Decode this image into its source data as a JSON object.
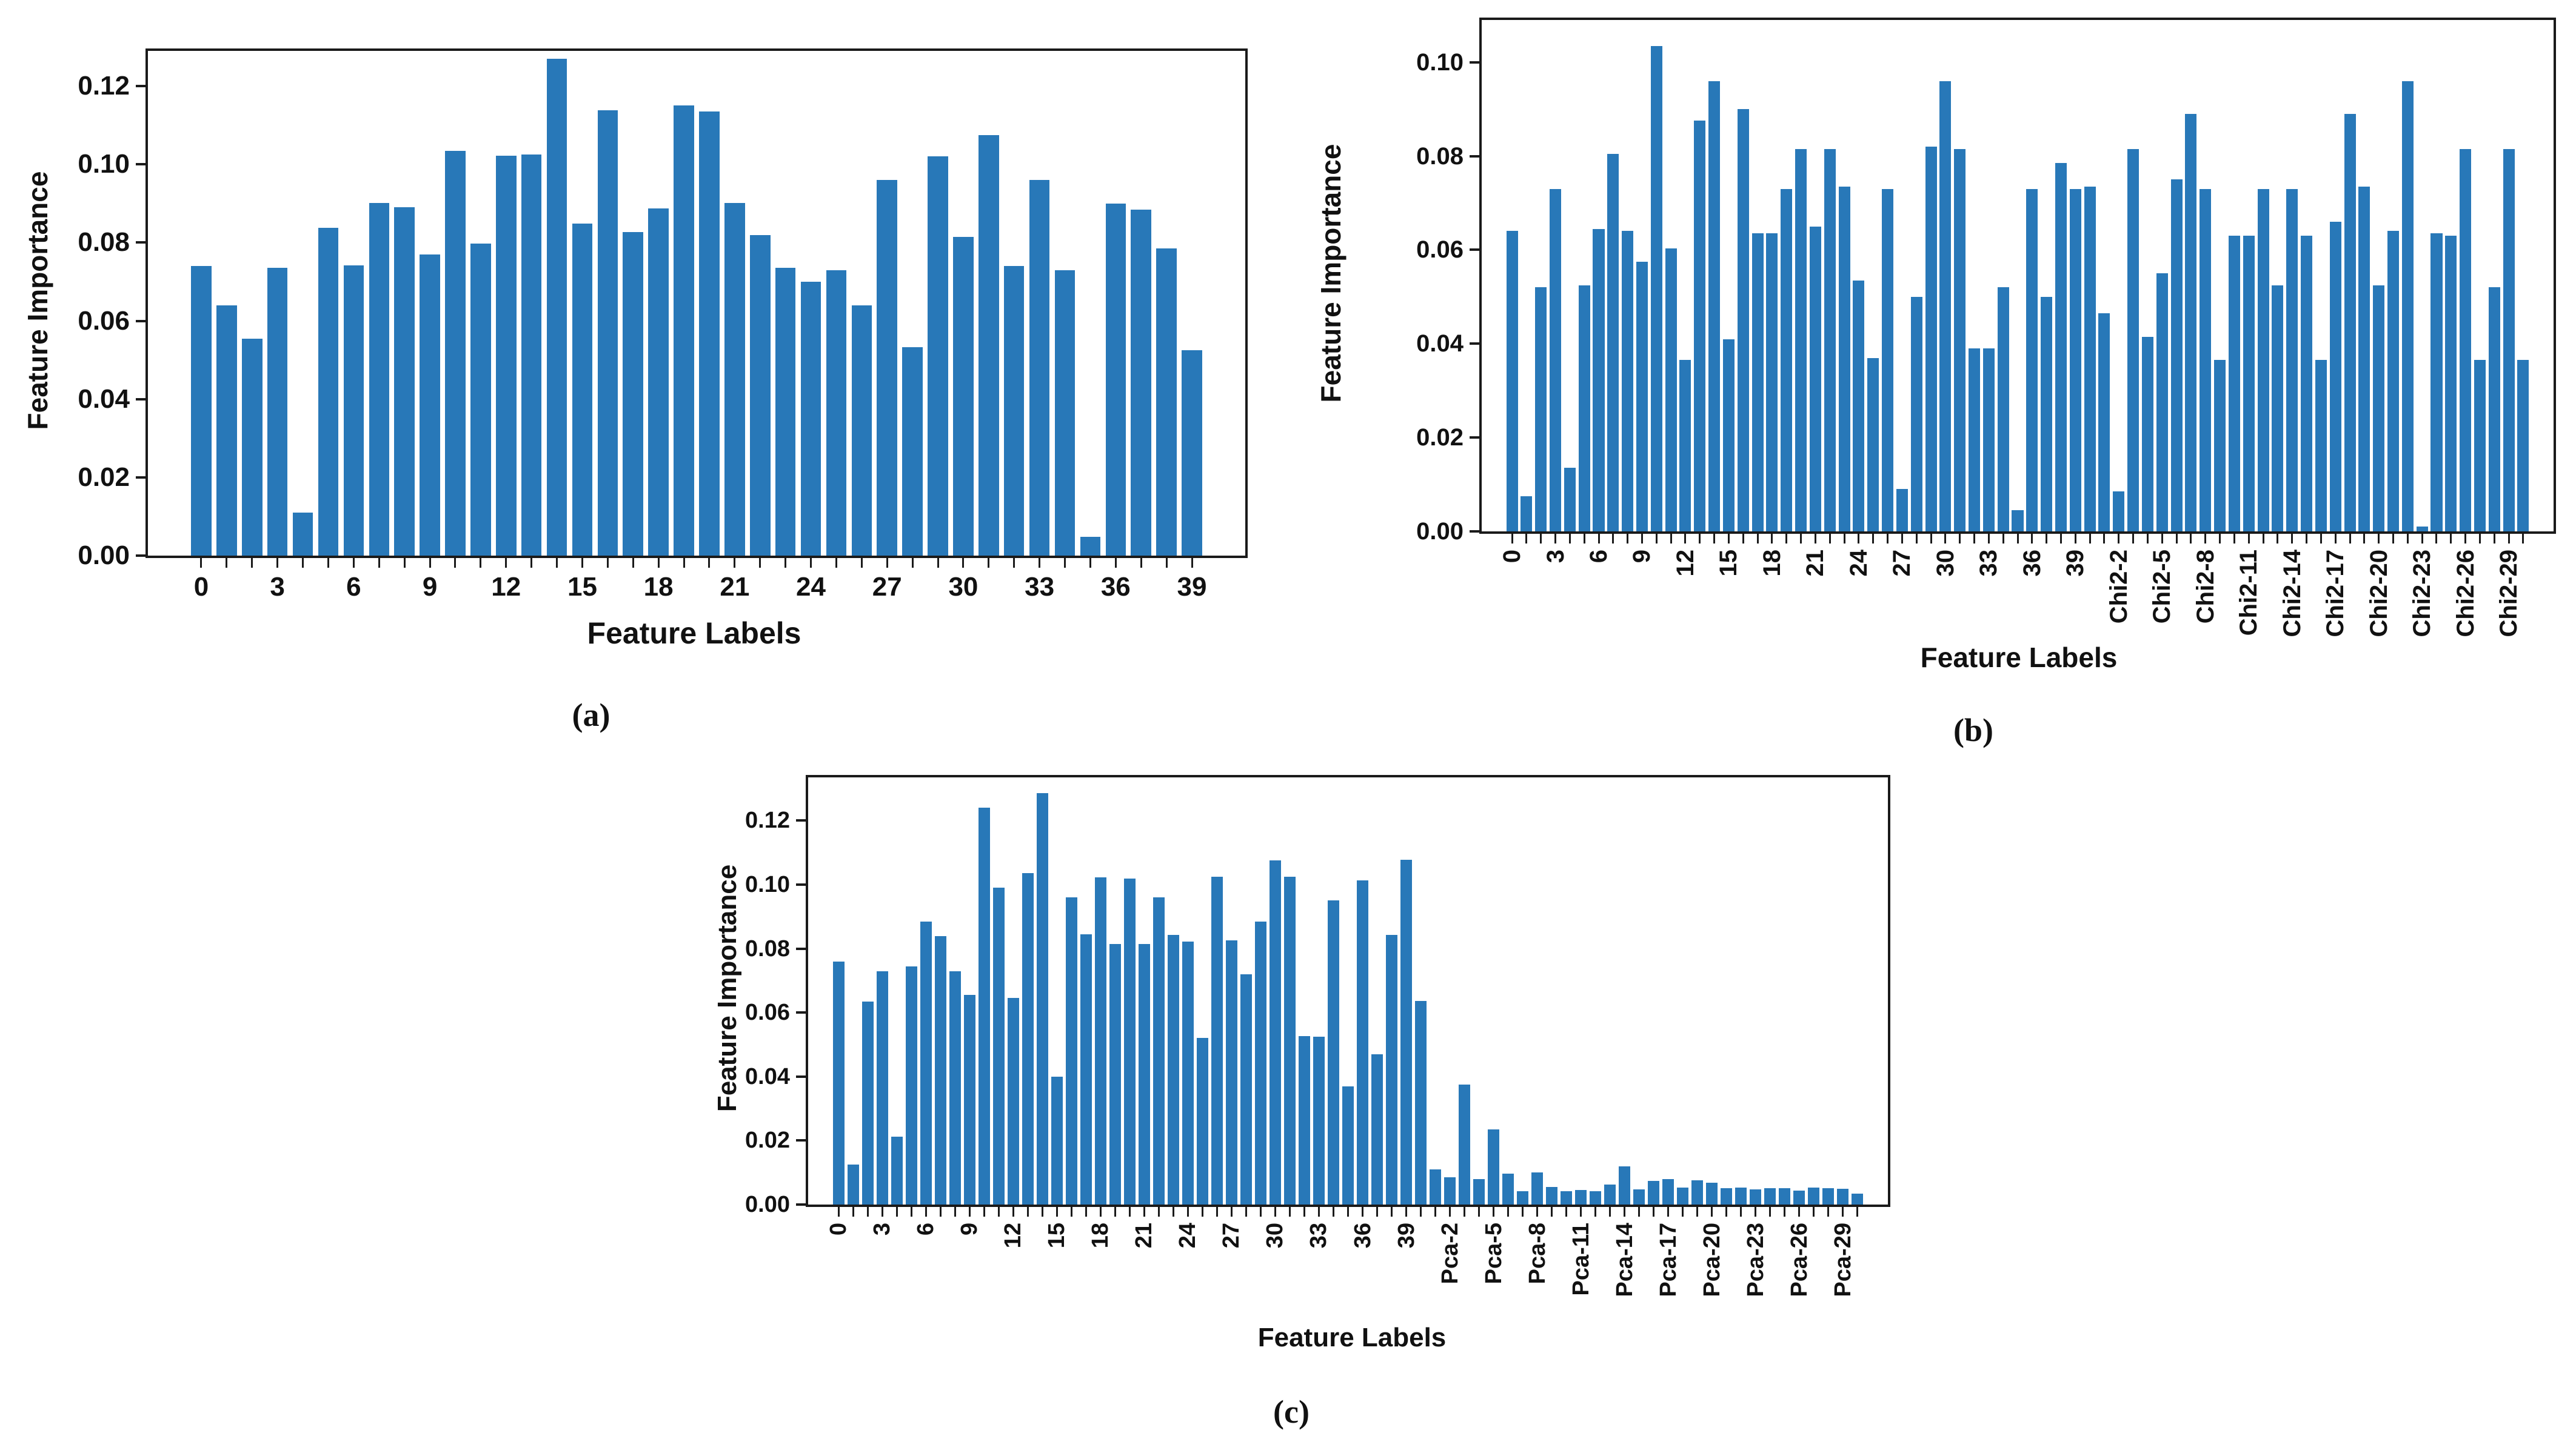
{
  "figure": {
    "background": "#ffffff",
    "bar_color": "#2878b8",
    "axis_color": "#1a1a1a",
    "captions": {
      "a": "(a)",
      "b": "(b)",
      "c": "(c)"
    }
  },
  "chart_data": [
    {
      "id": "a",
      "type": "bar",
      "title": "",
      "xlabel": "Feature Labels",
      "ylabel": "Feature Importance",
      "ylim": [
        0,
        0.129
      ],
      "yticks": [
        "0.00",
        "0.02",
        "0.04",
        "0.06",
        "0.08",
        "0.10",
        "0.12"
      ],
      "grid": false,
      "legend": null,
      "xtick_rotation": 0,
      "label_every": 3,
      "categories": [
        "0",
        "1",
        "2",
        "3",
        "4",
        "5",
        "6",
        "7",
        "8",
        "9",
        "10",
        "11",
        "12",
        "13",
        "14",
        "15",
        "16",
        "17",
        "18",
        "19",
        "20",
        "21",
        "22",
        "23",
        "24",
        "25",
        "26",
        "27",
        "28",
        "29",
        "30",
        "31",
        "32",
        "33",
        "34",
        "35",
        "36",
        "37",
        "38",
        "39"
      ],
      "values": [
        0.074,
        0.064,
        0.0555,
        0.0735,
        0.011,
        0.0838,
        0.0742,
        0.0902,
        0.089,
        0.077,
        0.1035,
        0.0797,
        0.1022,
        0.1025,
        0.127,
        0.0848,
        0.1138,
        0.0827,
        0.0888,
        0.115,
        0.1135,
        0.0902,
        0.082,
        0.0735,
        0.07,
        0.073,
        0.064,
        0.096,
        0.0532,
        0.102,
        0.0815,
        0.1075,
        0.074,
        0.096,
        0.073,
        0.0048,
        0.09,
        0.0885,
        0.0785,
        0.0525
      ]
    },
    {
      "id": "b",
      "type": "bar",
      "title": "",
      "xlabel": "Feature Labels",
      "ylabel": "Feature Importance",
      "ylim": [
        0,
        0.109
      ],
      "yticks": [
        "0.00",
        "0.02",
        "0.04",
        "0.06",
        "0.08",
        "0.10"
      ],
      "grid": false,
      "legend": null,
      "xtick_rotation": 90,
      "label_every": 3,
      "categories": [
        "0",
        "1",
        "2",
        "3",
        "4",
        "5",
        "6",
        "7",
        "8",
        "9",
        "10",
        "11",
        "12",
        "13",
        "14",
        "15",
        "16",
        "17",
        "18",
        "19",
        "20",
        "21",
        "22",
        "23",
        "24",
        "25",
        "26",
        "27",
        "28",
        "29",
        "30",
        "31",
        "32",
        "33",
        "34",
        "35",
        "36",
        "37",
        "38",
        "39",
        "Chi2-0",
        "Chi2-1",
        "Chi2-2",
        "Chi2-3",
        "Chi2-4",
        "Chi2-5",
        "Chi2-6",
        "Chi2-7",
        "Chi2-8",
        "Chi2-9",
        "Chi2-10",
        "Chi2-11",
        "Chi2-12",
        "Chi2-13",
        "Chi2-14",
        "Chi2-15",
        "Chi2-16",
        "Chi2-17",
        "Chi2-18",
        "Chi2-19",
        "Chi2-20",
        "Chi2-21",
        "Chi2-22",
        "Chi2-23",
        "Chi2-24",
        "Chi2-25",
        "Chi2-26",
        "Chi2-27",
        "Chi2-28",
        "Chi2-29",
        "Chi2-30"
      ],
      "values": [
        0.064,
        0.0075,
        0.052,
        0.073,
        0.0135,
        0.0525,
        0.0645,
        0.0805,
        0.064,
        0.0575,
        0.1035,
        0.0603,
        0.0365,
        0.0875,
        0.096,
        0.041,
        0.09,
        0.0635,
        0.0635,
        0.073,
        0.0815,
        0.065,
        0.0815,
        0.0735,
        0.0535,
        0.037,
        0.073,
        0.009,
        0.05,
        0.082,
        0.096,
        0.0815,
        0.039,
        0.039,
        0.052,
        0.0045,
        0.073,
        0.05,
        0.0785,
        0.073,
        0.0735,
        0.0465,
        0.0085,
        0.0815,
        0.0415,
        0.055,
        0.075,
        0.089,
        0.073,
        0.0365,
        0.063,
        0.063,
        0.073,
        0.0525,
        0.073,
        0.063,
        0.0365,
        0.066,
        0.089,
        0.0735,
        0.0525,
        0.064,
        0.096,
        0.001,
        0.0635,
        0.063,
        0.0815,
        0.0365,
        0.052,
        0.0815,
        0.0365
      ]
    },
    {
      "id": "c",
      "type": "bar",
      "title": "",
      "xlabel": "Feature Labels",
      "ylabel": "Feature Importance",
      "ylim": [
        0,
        0.1335
      ],
      "yticks": [
        "0.00",
        "0.02",
        "0.04",
        "0.06",
        "0.08",
        "0.10",
        "0.12"
      ],
      "grid": false,
      "legend": null,
      "xtick_rotation": 90,
      "label_every": 3,
      "categories": [
        "0",
        "1",
        "2",
        "3",
        "4",
        "5",
        "6",
        "7",
        "8",
        "9",
        "10",
        "11",
        "12",
        "13",
        "14",
        "15",
        "16",
        "17",
        "18",
        "19",
        "20",
        "21",
        "22",
        "23",
        "24",
        "25",
        "26",
        "27",
        "28",
        "29",
        "30",
        "31",
        "32",
        "33",
        "34",
        "35",
        "36",
        "37",
        "38",
        "39",
        "Pca-0",
        "Pca-1",
        "Pca-2",
        "Pca-3",
        "Pca-4",
        "Pca-5",
        "Pca-6",
        "Pca-7",
        "Pca-8",
        "Pca-9",
        "Pca-10",
        "Pca-11",
        "Pca-12",
        "Pca-13",
        "Pca-14",
        "Pca-15",
        "Pca-16",
        "Pca-17",
        "Pca-18",
        "Pca-19",
        "Pca-20",
        "Pca-21",
        "Pca-22",
        "Pca-23",
        "Pca-24",
        "Pca-25",
        "Pca-26",
        "Pca-27",
        "Pca-28",
        "Pca-29",
        "Pca-30"
      ],
      "values": [
        0.076,
        0.0125,
        0.0635,
        0.073,
        0.0212,
        0.0745,
        0.0885,
        0.0838,
        0.073,
        0.0655,
        0.124,
        0.099,
        0.0645,
        0.1035,
        0.1285,
        0.04,
        0.096,
        0.0845,
        0.1022,
        0.0815,
        0.1018,
        0.0815,
        0.096,
        0.0843,
        0.0822,
        0.052,
        0.1025,
        0.0825,
        0.072,
        0.0885,
        0.1075,
        0.1025,
        0.0527,
        0.0525,
        0.095,
        0.037,
        0.1013,
        0.047,
        0.0843,
        0.1078,
        0.0637,
        0.011,
        0.0085,
        0.0375,
        0.008,
        0.0235,
        0.0097,
        0.0042,
        0.01,
        0.0055,
        0.0042,
        0.0046,
        0.0042,
        0.0063,
        0.0119,
        0.0047,
        0.0074,
        0.008,
        0.0053,
        0.0075,
        0.0068,
        0.0052,
        0.0053,
        0.0047,
        0.0052,
        0.0052,
        0.0044,
        0.0053,
        0.0052,
        0.005,
        0.0035
      ]
    }
  ]
}
